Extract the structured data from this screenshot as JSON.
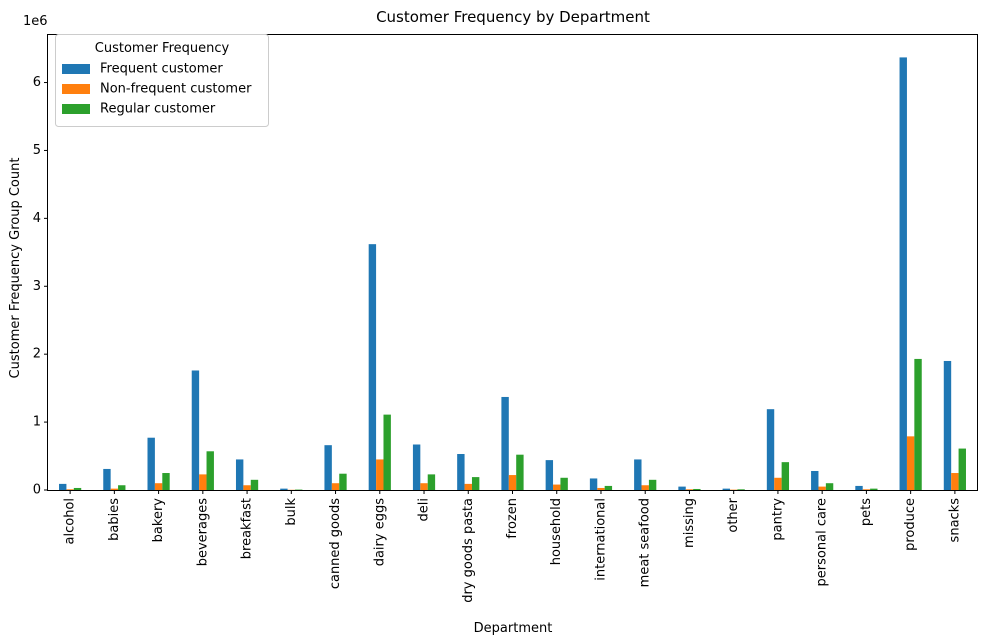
{
  "chart_data": {
    "type": "bar",
    "title": "Customer Frequency by Department",
    "xlabel": "Department",
    "ylabel": "Customer Frequency Group Count",
    "y_offset_label": "1e6",
    "ylim": [
      0,
      6.7
    ],
    "yticks": [
      "0",
      "1",
      "2",
      "3",
      "4",
      "5",
      "6"
    ],
    "legend_title": "Customer Frequency",
    "legend_position": "top-left",
    "grid": false,
    "categories": [
      "alcohol",
      "babies",
      "bakery",
      "beverages",
      "breakfast",
      "bulk",
      "canned goods",
      "dairy eggs",
      "deli",
      "dry goods pasta",
      "frozen",
      "household",
      "international",
      "meat seafood",
      "missing",
      "other",
      "pantry",
      "personal care",
      "pets",
      "produce",
      "snacks"
    ],
    "series": [
      {
        "name": "Frequent customer",
        "color": "#1f77b4",
        "values": [
          0.09,
          0.31,
          0.77,
          1.76,
          0.45,
          0.02,
          0.66,
          3.62,
          0.67,
          0.53,
          1.37,
          0.44,
          0.17,
          0.45,
          0.05,
          0.02,
          1.19,
          0.28,
          0.06,
          6.37,
          1.9
        ]
      },
      {
        "name": "Non-frequent customer",
        "color": "#ff7f0e",
        "values": [
          0.01,
          0.02,
          0.1,
          0.23,
          0.07,
          0.003,
          0.1,
          0.45,
          0.1,
          0.09,
          0.22,
          0.08,
          0.03,
          0.07,
          0.01,
          0.005,
          0.18,
          0.05,
          0.01,
          0.79,
          0.25
        ]
      },
      {
        "name": "Regular customer",
        "color": "#2ca02c",
        "values": [
          0.03,
          0.07,
          0.25,
          0.57,
          0.15,
          0.006,
          0.24,
          1.11,
          0.23,
          0.19,
          0.52,
          0.18,
          0.06,
          0.15,
          0.015,
          0.01,
          0.41,
          0.1,
          0.02,
          1.93,
          0.61
        ]
      }
    ]
  }
}
